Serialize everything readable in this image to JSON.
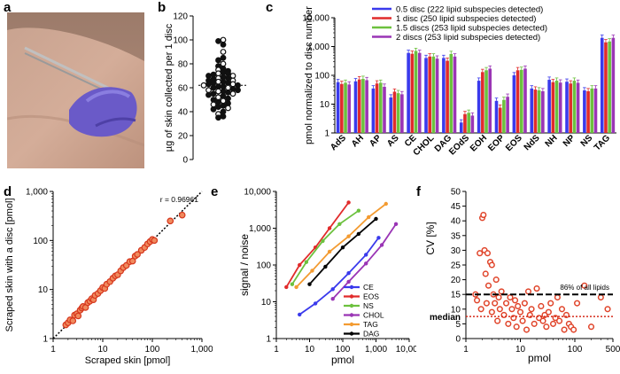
{
  "panel_labels": {
    "a": "a",
    "b": "b",
    "c": "c",
    "d": "d",
    "e": "e",
    "f": "f"
  },
  "colors": {
    "blue": "#3a3aec",
    "red": "#e12b2b",
    "green": "#6cc13e",
    "purple": "#9a35b5",
    "orange": "#f39b31",
    "black": "#000000",
    "cv_point": "#e0442a",
    "cv_median": "#d62a1a"
  },
  "photo": {
    "description_icon": "arm-skin-scraping-photo"
  },
  "chart_data": [
    {
      "id": "b",
      "type": "scatter",
      "ylabel": "µg of skin collected per 1 disc",
      "ylim": [
        0,
        120
      ],
      "yticks": [
        0,
        20,
        40,
        60,
        80,
        100,
        120
      ],
      "mean_line": 62,
      "values": [
        100,
        99,
        96,
        90,
        85,
        83,
        80,
        78,
        76,
        75,
        74,
        73,
        72,
        72,
        71,
        70,
        70,
        69,
        68,
        68,
        67,
        66,
        66,
        65,
        65,
        64,
        64,
        63,
        63,
        62,
        62,
        61,
        61,
        60,
        60,
        59,
        58,
        58,
        57,
        57,
        56,
        55,
        55,
        54,
        53,
        52,
        51,
        50,
        49,
        48,
        47,
        46,
        45,
        44,
        43,
        42,
        40,
        38,
        36,
        35
      ]
    },
    {
      "id": "c",
      "type": "bar",
      "scale": "log",
      "ylabel": "pmol normalized to disc number",
      "ylim": [
        1,
        10000
      ],
      "yticks": [
        "1",
        "10",
        "100",
        "1,000",
        "10,000"
      ],
      "categories": [
        "AdS",
        "AH",
        "AP",
        "AS",
        "CE",
        "CHOL",
        "DAG",
        "EOdS",
        "EOH",
        "EOP",
        "EOS",
        "NdS",
        "NH",
        "NP",
        "NS",
        "TAG"
      ],
      "legend": [
        "0.5 disc (222 lipid subspecies detected)",
        "1 disc (250 lipid subspecies detected)",
        "1.5 discs (253 lipid subspecies detected)",
        "2 discs (253 lipid subspecies detected)"
      ],
      "series": [
        {
          "name": "0.5 disc",
          "color": "#3a3aec",
          "values": [
            58,
            62,
            35,
            17,
            600,
            400,
            400,
            2.3,
            65,
            13,
            100,
            35,
            70,
            60,
            30,
            2000
          ]
        },
        {
          "name": "1 disc",
          "color": "#e12b2b",
          "values": [
            50,
            72,
            52,
            27,
            560,
            450,
            320,
            4.5,
            130,
            7.5,
            150,
            32,
            58,
            52,
            28,
            1400
          ]
        },
        {
          "name": "1.5 discs",
          "color": "#6cc13e",
          "values": [
            55,
            75,
            55,
            24,
            700,
            450,
            550,
            5,
            150,
            14,
            155,
            30,
            65,
            65,
            35,
            1500
          ]
        },
        {
          "name": "2 discs",
          "color": "#9a35b5",
          "values": [
            48,
            68,
            40,
            22,
            600,
            380,
            450,
            4,
            170,
            18,
            170,
            28,
            56,
            55,
            35,
            2000
          ]
        }
      ]
    },
    {
      "id": "d",
      "type": "scatter",
      "scale": "log-log",
      "xlabel": "Scraped skin [pmol]",
      "ylabel": "Scraped skin with a disc [pmol]",
      "xticks": [
        "1",
        "10",
        "100",
        "1,000"
      ],
      "yticks": [
        "1",
        "10",
        "100",
        "1,000"
      ],
      "annotation": "r = 0.96961",
      "points": [
        [
          1.8,
          1.9
        ],
        [
          2,
          2.1
        ],
        [
          2.2,
          2.4
        ],
        [
          2.5,
          2.3
        ],
        [
          2.7,
          3
        ],
        [
          3,
          3.2
        ],
        [
          3.2,
          2.9
        ],
        [
          3.5,
          3.8
        ],
        [
          3.8,
          4.2
        ],
        [
          4,
          4.5
        ],
        [
          4.5,
          4.3
        ],
        [
          5,
          5.4
        ],
        [
          5.5,
          5.8
        ],
        [
          6,
          6.5
        ],
        [
          6.5,
          6.2
        ],
        [
          7,
          7.6
        ],
        [
          8,
          8.3
        ],
        [
          9,
          9.5
        ],
        [
          10,
          11
        ],
        [
          11,
          10.5
        ],
        [
          12,
          12.8
        ],
        [
          14,
          14.5
        ],
        [
          16,
          17
        ],
        [
          18,
          19
        ],
        [
          20,
          20
        ],
        [
          23,
          24
        ],
        [
          26,
          28
        ],
        [
          30,
          31
        ],
        [
          35,
          37
        ],
        [
          40,
          38
        ],
        [
          45,
          48
        ],
        [
          50,
          52
        ],
        [
          60,
          63
        ],
        [
          70,
          72
        ],
        [
          80,
          85
        ],
        [
          90,
          95
        ],
        [
          100,
          105
        ],
        [
          110,
          100
        ],
        [
          230,
          250
        ],
        [
          400,
          330
        ]
      ]
    },
    {
      "id": "e",
      "type": "line",
      "scale": "log-log",
      "xlabel": "pmol",
      "ylabel": "signal / noise",
      "xticks": [
        "1",
        "10",
        "100",
        "1,000",
        "10,000"
      ],
      "yticks": [
        "1",
        "10",
        "100",
        "1,000",
        "10,000"
      ],
      "series": [
        {
          "name": "CE",
          "color": "#3a3aec",
          "x": [
            5,
            15,
            50,
            150,
            500,
            1200
          ],
          "y": [
            4.5,
            9,
            22,
            60,
            190,
            550
          ]
        },
        {
          "name": "EOS",
          "color": "#e12b2b",
          "x": [
            2,
            5,
            15,
            40,
            150
          ],
          "y": [
            25,
            100,
            300,
            1000,
            5000
          ]
        },
        {
          "name": "NS",
          "color": "#6cc13e",
          "x": [
            3,
            8,
            25,
            80,
            300
          ],
          "y": [
            30,
            120,
            450,
            1300,
            3000
          ]
        },
        {
          "name": "CHOL",
          "color": "#9a35b5",
          "x": [
            50,
            150,
            500,
            1500,
            4000
          ],
          "y": [
            12,
            35,
            110,
            350,
            1300
          ]
        },
        {
          "name": "TAG",
          "color": "#f39b31",
          "x": [
            4,
            12,
            40,
            150,
            600,
            2000
          ],
          "y": [
            25,
            70,
            230,
            600,
            2000,
            4600
          ]
        },
        {
          "name": "DAG",
          "color": "#000000",
          "x": [
            10,
            30,
            100,
            300,
            1000
          ],
          "y": [
            30,
            90,
            300,
            700,
            1800
          ]
        }
      ]
    },
    {
      "id": "f",
      "type": "scatter",
      "scale": "log-x",
      "xlabel": "pmol",
      "ylabel": "CV [%]",
      "xticks": [
        "1",
        "10",
        "100",
        "500"
      ],
      "yticks": [
        "0",
        "5",
        "10",
        "15",
        "20",
        "25",
        "30",
        "35",
        "40",
        "45",
        "50"
      ],
      "threshold": 15,
      "threshold_label": "86% of all lipids",
      "median": 7.5,
      "median_label": "median",
      "points": [
        [
          1.5,
          15
        ],
        [
          1.6,
          13
        ],
        [
          1.8,
          29
        ],
        [
          1.9,
          10
        ],
        [
          2,
          41
        ],
        [
          2.1,
          42
        ],
        [
          2.2,
          30
        ],
        [
          2.3,
          22
        ],
        [
          2.4,
          12
        ],
        [
          2.5,
          29
        ],
        [
          2.6,
          18
        ],
        [
          2.8,
          26
        ],
        [
          3,
          25
        ],
        [
          3,
          9
        ],
        [
          3.2,
          15
        ],
        [
          3.4,
          12
        ],
        [
          3.6,
          20
        ],
        [
          3.8,
          6
        ],
        [
          4,
          14
        ],
        [
          4.2,
          10
        ],
        [
          4.5,
          16
        ],
        [
          5,
          8
        ],
        [
          5.5,
          12
        ],
        [
          6,
          5
        ],
        [
          6.5,
          14
        ],
        [
          7,
          10
        ],
        [
          7.5,
          7
        ],
        [
          8,
          13
        ],
        [
          8.5,
          4
        ],
        [
          9,
          11
        ],
        [
          10,
          9
        ],
        [
          11,
          6
        ],
        [
          12,
          12
        ],
        [
          13,
          3
        ],
        [
          14,
          16
        ],
        [
          15,
          8
        ],
        [
          16,
          10
        ],
        [
          18,
          5
        ],
        [
          20,
          17
        ],
        [
          22,
          7
        ],
        [
          24,
          11
        ],
        [
          26,
          6
        ],
        [
          28,
          8
        ],
        [
          30,
          4
        ],
        [
          33,
          9
        ],
        [
          36,
          12
        ],
        [
          40,
          5
        ],
        [
          44,
          7
        ],
        [
          48,
          14
        ],
        [
          52,
          6
        ],
        [
          58,
          10
        ],
        [
          64,
          3
        ],
        [
          70,
          8
        ],
        [
          78,
          5
        ],
        [
          85,
          4
        ],
        [
          95,
          3
        ],
        [
          110,
          12
        ],
        [
          150,
          18
        ],
        [
          200,
          4
        ],
        [
          300,
          14
        ],
        [
          400,
          10
        ]
      ]
    }
  ]
}
